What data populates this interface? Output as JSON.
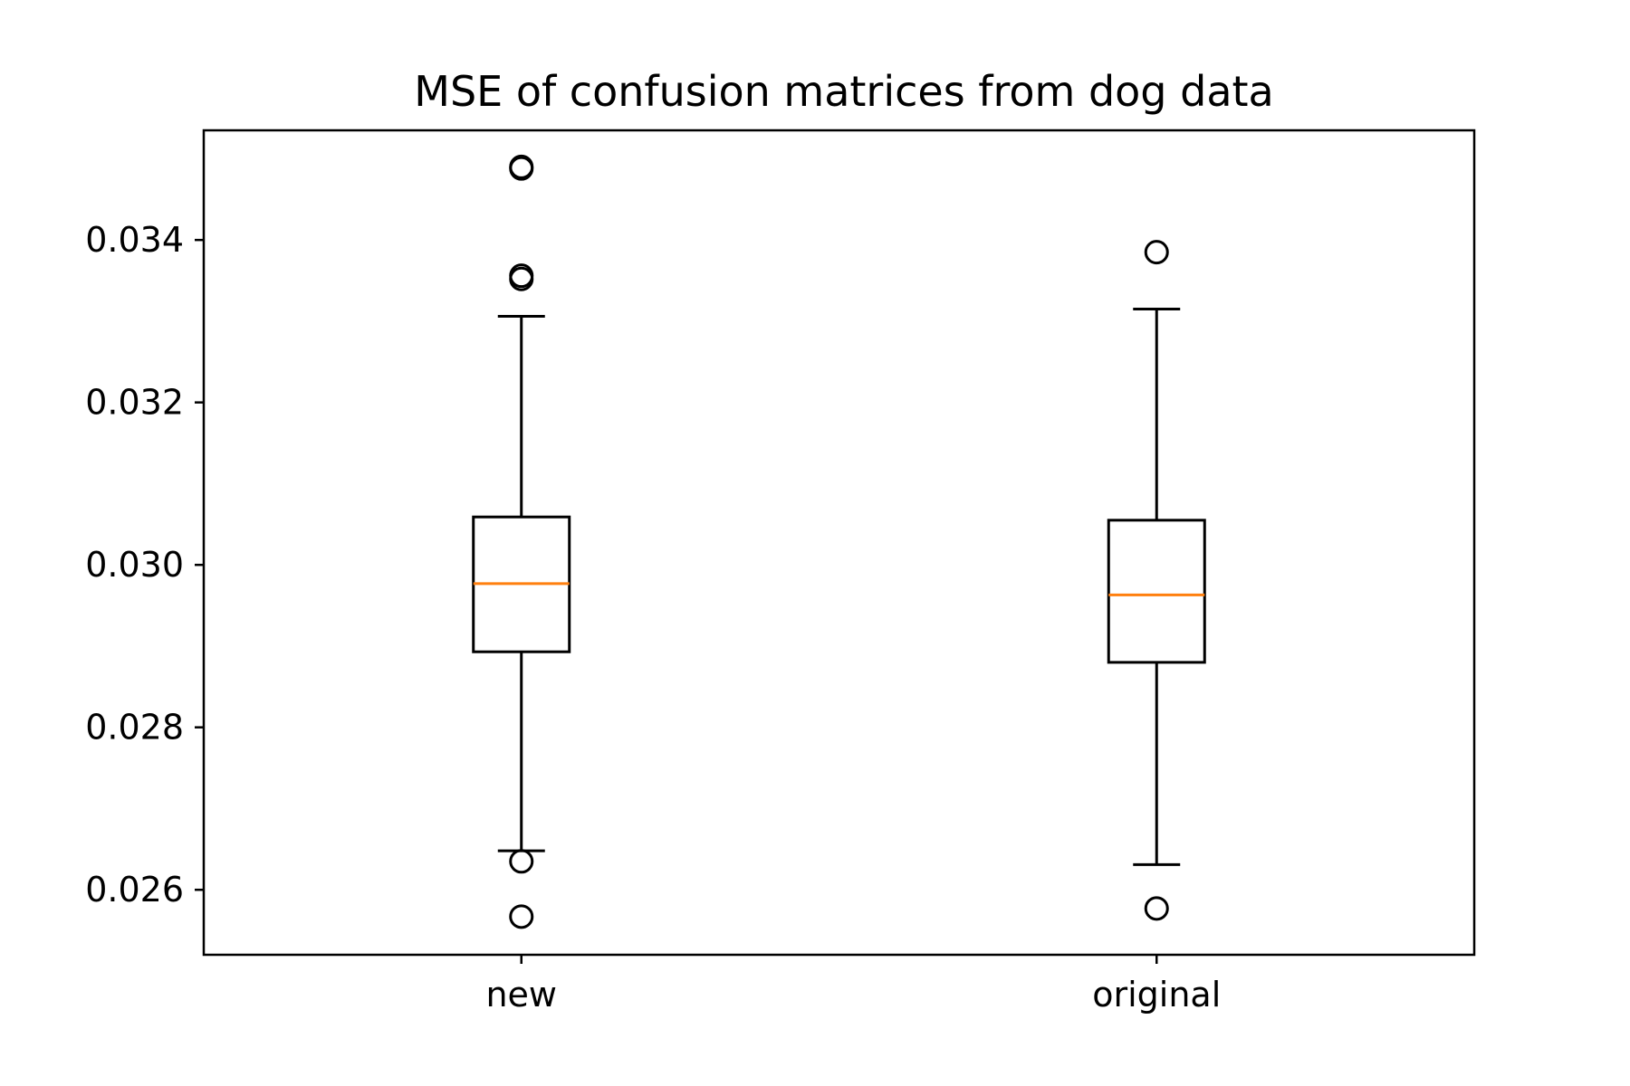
{
  "chart_data": {
    "type": "box",
    "title": "MSE of confusion matrices from dog data",
    "xlabel": "",
    "ylabel": "",
    "categories": [
      "new",
      "original"
    ],
    "ylim": [
      0.0252,
      0.03535
    ],
    "yticks": [
      0.026,
      0.028,
      0.03,
      0.032,
      0.034
    ],
    "ytick_labels": [
      "0.026",
      "0.028",
      "0.030",
      "0.032",
      "0.034"
    ],
    "grid": false,
    "colors": {
      "box": "#000000",
      "median": "#ff7f0e",
      "flier": "#000000"
    },
    "boxes": [
      {
        "name": "new",
        "whisker_low": 0.02648,
        "q1": 0.02893,
        "median": 0.02977,
        "q3": 0.03059,
        "whisker_high": 0.03306,
        "fliers": [
          0.0349,
          0.03488,
          0.03356,
          0.03352,
          0.02635,
          0.02567
        ]
      },
      {
        "name": "original",
        "whisker_low": 0.02631,
        "q1": 0.0288,
        "median": 0.02963,
        "q3": 0.03055,
        "whisker_high": 0.03315,
        "fliers": [
          0.03385,
          0.02577
        ]
      }
    ]
  }
}
